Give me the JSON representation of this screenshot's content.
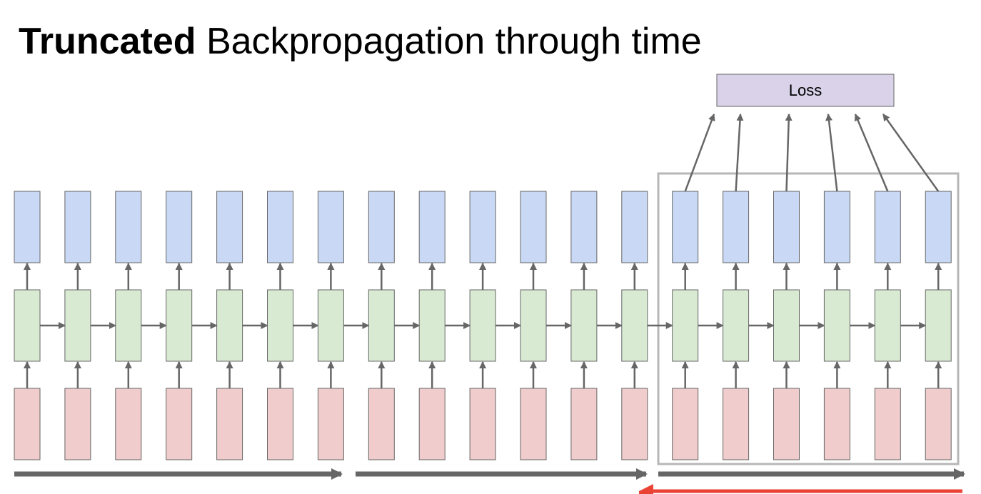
{
  "title": {
    "bold": "Truncated",
    "rest": " Backpropagation through time"
  },
  "diagram": {
    "timesteps": 19,
    "truncated_window_size": 6,
    "forward_chunks": 3,
    "loss_label": "Loss",
    "colors": {
      "output": "#c9d9f5",
      "hidden": "#d9ead3",
      "input": "#f0cccc",
      "loss": "#d9d2e9",
      "arrow": "#666666",
      "backward_arrow": "#ea4335",
      "window_border": "#b7b7b7"
    }
  }
}
